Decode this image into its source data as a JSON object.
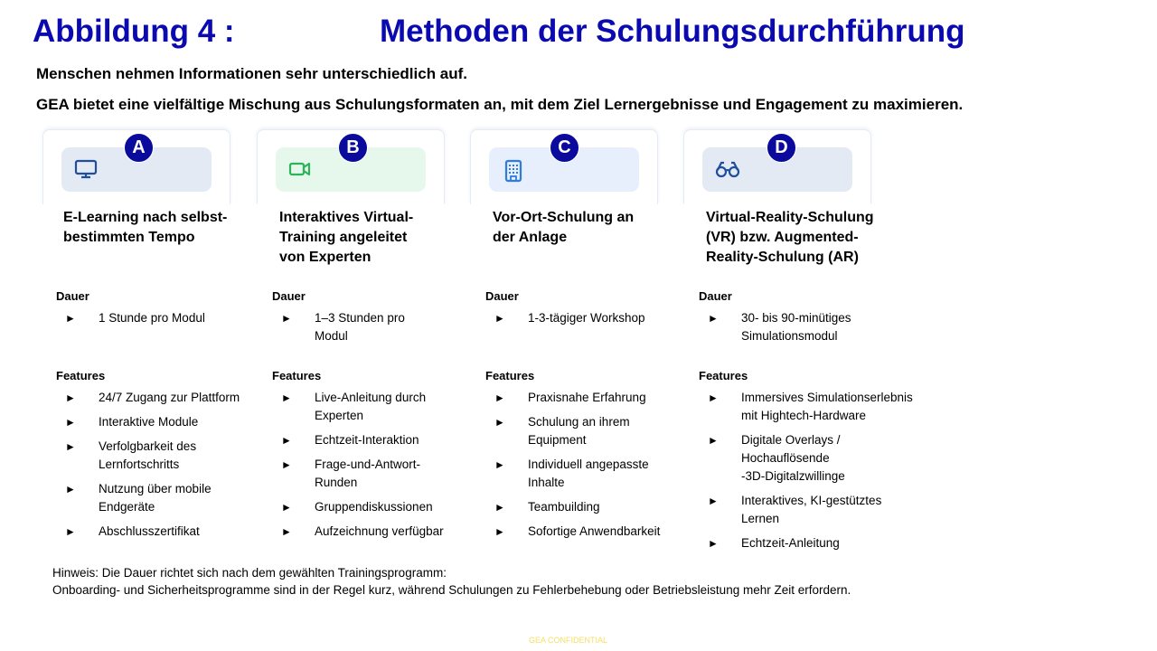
{
  "header": {
    "figure": "Abbildung 4 :",
    "title": "Methoden der Schulungsdurchführung"
  },
  "intro": [
    "Menschen nehmen Informationen sehr unterschiedlich auf.",
    "GEA bietet eine vielfältige Mischung aus Schulungsformaten an, mit dem Ziel Lernergebnisse und Engagement zu maximieren."
  ],
  "columns": [
    {
      "badge": "A",
      "icon": "monitor-icon",
      "icon_color": "#1f4e9c",
      "pill_color": "#e4eaf4",
      "title": "E-Learning nach selbst-\nbestimmten Tempo",
      "duration_label": "Dauer",
      "duration": [
        "1 Stunde pro Modul"
      ],
      "features_label": "Features",
      "features": [
        "24/7 Zugang zur Plattform",
        "Interaktive Module",
        "Verfolgbarkeit des\nLernfortschritts",
        "Nutzung über mobile\nEndgeräte",
        "Abschlusszertifikat"
      ]
    },
    {
      "badge": "B",
      "icon": "video-camera-icon",
      "icon_color": "#2fb35a",
      "pill_color": "#e6f8ec",
      "title": "Interaktives Virtual-\nTraining angeleitet\nvon Experten",
      "duration_label": "Dauer",
      "duration": [
        "1–3 Stunden pro\nModul"
      ],
      "features_label": "Features",
      "features": [
        "Live-Anleitung durch\nExperten",
        "Echtzeit-Interaktion",
        "Frage-und-Antwort-\nRunden",
        "Gruppendiskussionen",
        "Aufzeichnung verfügbar"
      ]
    },
    {
      "badge": "C",
      "icon": "building-icon",
      "icon_color": "#2f7be0",
      "pill_color": "#e6effb",
      "title": "Vor-Ort-Schulung an\nder Anlage",
      "duration_label": "Dauer",
      "duration": [
        "1-3-tägiger Workshop"
      ],
      "features_label": "Features",
      "features": [
        "Praxisnahe Erfahrung",
        "Schulung an ihrem\nEquipment",
        "Individuell angepasste\nInhalte",
        "Teambuilding",
        "Sofortige Anwendbarkeit"
      ]
    },
    {
      "badge": "D",
      "icon": "glasses-icon",
      "icon_color": "#1f4e9c",
      "pill_color": "#e4eaf4",
      "title": "Virtual-Reality-Schulung\n(VR) bzw. Augmented-\nReality-Schulung (AR)",
      "duration_label": "Dauer",
      "duration": [
        "30- bis 90-minütiges\nSimulationsmodul"
      ],
      "features_label": "Features",
      "features": [
        "Immersives Simulationserlebnis\nmit Hightech-Hardware",
        "Digitale Overlays /\nHochauflösende\n-3D-Digitalzwillinge",
        "Interaktives, KI-gestütztes\nLernen",
        "Echtzeit-Anleitung"
      ]
    }
  ],
  "bullet": "►",
  "note": "Hinweis: Die Dauer richtet sich nach dem gewählten Trainingsprogramm:\nOnboarding- und Sicherheitsprogramme sind in der Regel kurz, während Schulungen zu Fehlerbehebung oder Betriebsleistung mehr Zeit erfordern.",
  "footer": "GEA CONFIDENTIAL"
}
